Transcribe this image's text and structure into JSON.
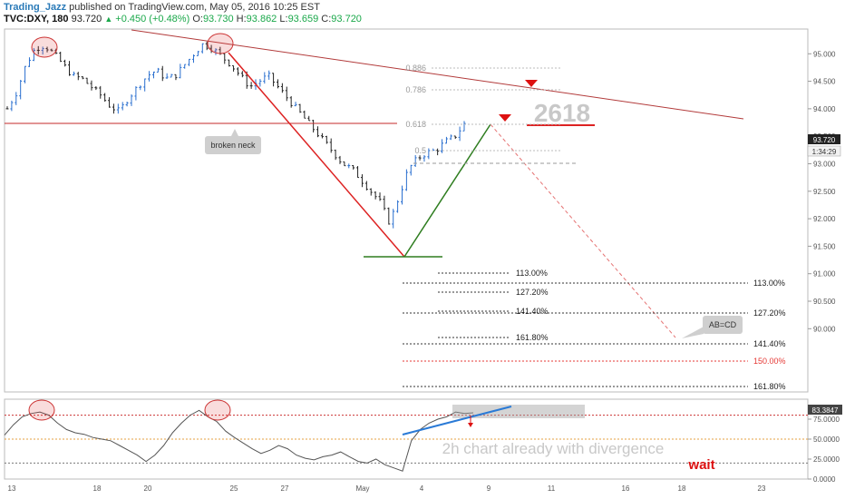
{
  "header": {
    "author": "Trading_Jazz",
    "published": "published on TradingView.com, May 05, 2016 10:25 EST",
    "symbol": "TVC:DXY, 180",
    "last": "93.720",
    "change": "+0.450 (+0.48%)",
    "open": "93.730",
    "high": "93.862",
    "low": "93.659",
    "close": "93.720"
  },
  "annotations": {
    "broken_neck": "broken neck",
    "pattern_label": "2618",
    "abcd": "AB=CD",
    "divergence": "2h chart already with divergence",
    "wait": "wait"
  },
  "fib_retracement": [
    "0.886",
    "0.786",
    "0.618",
    "0.5"
  ],
  "fib_inner": [
    "113.00%",
    "127.20%",
    "141.40%",
    "161.80%"
  ],
  "fib_outer": [
    "113.00%",
    "127.20%",
    "141.40%",
    "150.00%",
    "161.80%"
  ],
  "price_badges": {
    "last": "93.720",
    "countdown": "1:34:29"
  },
  "rsi_badge": "83.3847",
  "colors": {
    "up_candle": "#2a6fcf",
    "down_candle": "#222222",
    "resistance": "#b23a3a",
    "neckline": "#c62828",
    "green_leg": "#2e7d1f",
    "projection": "#e57373",
    "arrow": "#dd1111",
    "divergence_line": "#2a7ad6",
    "rsi_line": "#555555"
  },
  "chart_data": [
    {
      "type": "candlestick",
      "title": "TVC:DXY, 180",
      "ylim": [
        88.85,
        95.45
      ],
      "y_ticks": [
        "95.000",
        "94.500",
        "94.000",
        "93.500",
        "93.000",
        "92.500",
        "92.000",
        "91.500",
        "91.000",
        "90.500",
        "90.000"
      ],
      "x_ticks": [
        "13",
        "18",
        "20",
        "25",
        "27",
        "May",
        "4",
        "9",
        "11",
        "16",
        "18",
        "23"
      ],
      "pivots": [
        {
          "label": "left top",
          "x": "15",
          "y": 95.15
        },
        {
          "label": "right top",
          "x": "24",
          "y": 95.18
        },
        {
          "label": "low",
          "x": "3 May",
          "y": 91.92
        },
        {
          "label": "last",
          "x": "5 May",
          "y": 93.72
        }
      ],
      "neckline": 93.96,
      "path_points": [
        94.0,
        94.3,
        94.8,
        95.1,
        95.15,
        95.0,
        94.8,
        94.6,
        94.55,
        94.4,
        94.25,
        94.05,
        93.95,
        94.2,
        94.4,
        94.6,
        94.7,
        94.55,
        94.6,
        94.8,
        95.0,
        95.18,
        95.1,
        94.95,
        94.8,
        94.6,
        94.4,
        94.5,
        94.6,
        94.4,
        94.2,
        94.0,
        93.8,
        93.6,
        93.4,
        93.2,
        93.0,
        92.9,
        92.7,
        92.5,
        92.3,
        91.92,
        92.4,
        92.9,
        93.1,
        93.2,
        93.25,
        93.4,
        93.5,
        93.72
      ]
    },
    {
      "type": "line",
      "title": "RSI",
      "ylim": [
        0,
        100
      ],
      "y_ticks": [
        "75.0000",
        "50.0000",
        "25.0000",
        "0.0000"
      ],
      "reference_lines": [
        80,
        50,
        20
      ],
      "values": [
        55,
        68,
        78,
        82,
        84,
        80,
        70,
        62,
        58,
        56,
        52,
        50,
        48,
        42,
        36,
        30,
        22,
        30,
        42,
        58,
        70,
        80,
        86,
        78,
        72,
        60,
        52,
        45,
        38,
        32,
        36,
        42,
        38,
        30,
        26,
        24,
        28,
        30,
        34,
        28,
        22,
        20,
        25,
        18,
        14,
        10,
        48,
        62,
        70,
        75,
        78,
        84,
        82,
        83
      ]
    }
  ]
}
